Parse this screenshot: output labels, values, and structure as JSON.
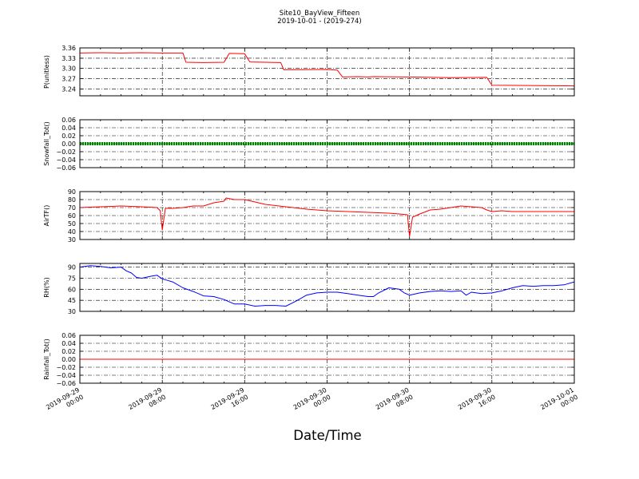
{
  "figure": {
    "title": "Site10_BayView_Fifteen",
    "subtitle": "2019-10-01 - (2019-274)",
    "xlabel": "Date/Time",
    "x_tick_labels": [
      [
        "2019-09-29",
        "00:00"
      ],
      [
        "2019-09-29",
        "08:00"
      ],
      [
        "2019-09-29",
        "16:00"
      ],
      [
        "2019-09-30",
        "00:00"
      ],
      [
        "2019-09-30",
        "08:00"
      ],
      [
        "2019-09-30",
        "16:00"
      ],
      [
        "2019-10-01",
        "00:00"
      ]
    ]
  },
  "chart_data": [
    {
      "type": "line",
      "ylabel": "P(unitless)",
      "ylim": [
        3.22,
        3.36
      ],
      "yticks": [
        3.36,
        3.33,
        3.3,
        3.27,
        3.24
      ],
      "ytick_labels": [
        "3.36",
        "3.33",
        "3.30",
        "3.27",
        "3.24"
      ],
      "xlim": [
        0,
        48
      ],
      "grid": true,
      "color": "#ff0000",
      "series": [
        {
          "x": [
            0,
            2,
            4,
            6,
            8,
            10,
            10.3,
            12,
            14,
            14.5,
            16,
            16.5,
            18,
            19.5,
            19.8,
            24,
            25,
            25.5,
            27,
            28,
            28.5,
            32,
            36,
            39.5,
            40,
            48
          ],
          "y": [
            3.345,
            3.346,
            3.345,
            3.346,
            3.345,
            3.345,
            3.318,
            3.317,
            3.318,
            3.344,
            3.343,
            3.319,
            3.318,
            3.317,
            3.296,
            3.297,
            3.295,
            3.275,
            3.276,
            3.275,
            3.276,
            3.275,
            3.273,
            3.274,
            3.251,
            3.249
          ]
        }
      ]
    },
    {
      "type": "line",
      "ylabel": "Snowfall_Tot()",
      "ylim": [
        -0.06,
        0.06
      ],
      "yticks": [
        0.06,
        0.04,
        0.02,
        0.0,
        -0.02,
        -0.04,
        -0.06
      ],
      "ytick_labels": [
        "0.06",
        "0.04",
        "0.02",
        "0.00",
        "−0.02",
        "−0.04",
        "−0.06"
      ],
      "xlim": [
        0,
        48
      ],
      "grid": true,
      "color": "#008000",
      "marker": "dot",
      "series": [
        {
          "x": [
            0,
            48
          ],
          "y": [
            0,
            0
          ]
        }
      ]
    },
    {
      "type": "line",
      "ylabel": "AirTF()",
      "ylim": [
        30,
        90
      ],
      "yticks": [
        90,
        80,
        70,
        60,
        50,
        40,
        30
      ],
      "ytick_labels": [
        "90",
        "80",
        "70",
        "60",
        "50",
        "40",
        "30"
      ],
      "xlim": [
        0,
        48
      ],
      "grid": true,
      "color": "#ff0000",
      "series": [
        {
          "x": [
            0,
            2,
            4,
            6,
            7.5,
            7.8,
            8,
            8.3,
            9,
            10,
            11,
            12,
            13,
            14,
            14.2,
            15,
            16,
            17,
            18,
            20,
            22,
            24,
            26,
            28,
            30,
            31,
            31.8,
            32,
            32.3,
            33,
            34,
            35,
            36,
            37,
            38,
            39,
            39.5,
            40,
            41,
            42,
            44,
            46,
            48
          ],
          "y": [
            70,
            71,
            72,
            71,
            70,
            66,
            42,
            69,
            69,
            70,
            72,
            72,
            76,
            78,
            82,
            80,
            80,
            77,
            74,
            71,
            68,
            66,
            65,
            64,
            63,
            62,
            61,
            34,
            58,
            62,
            67,
            68,
            70,
            72,
            71,
            70,
            67,
            65,
            66,
            65,
            65,
            65,
            65
          ]
        }
      ]
    },
    {
      "type": "line",
      "ylabel": "RH(%)",
      "ylim": [
        30,
        95
      ],
      "yticks": [
        90,
        75,
        60,
        45,
        30
      ],
      "ytick_labels": [
        "90",
        "75",
        "60",
        "45",
        "30"
      ],
      "xlim": [
        0,
        48
      ],
      "grid": true,
      "color": "#0000ff",
      "series": [
        {
          "x": [
            0,
            1,
            2,
            3,
            4,
            4.5,
            5,
            5.5,
            6,
            7,
            7.5,
            8,
            8.5,
            9,
            10,
            11,
            12,
            13,
            14,
            15,
            16,
            17,
            18,
            19,
            20,
            21,
            22,
            23,
            24,
            25,
            26,
            27,
            28,
            28.5,
            29,
            30,
            31,
            31.5,
            32,
            33,
            34,
            35,
            36,
            37,
            37.5,
            38,
            39,
            40,
            41,
            42,
            43,
            44,
            45,
            46,
            47,
            48
          ],
          "y": [
            90,
            92,
            91,
            89,
            90,
            85,
            82,
            76,
            75,
            78,
            79,
            74,
            72,
            70,
            62,
            57,
            51,
            50,
            46,
            40,
            40,
            37,
            38,
            38,
            37,
            44,
            52,
            55,
            56,
            56,
            54,
            52,
            50,
            50,
            55,
            62,
            60,
            55,
            52,
            55,
            57,
            58,
            57,
            58,
            52,
            56,
            54,
            55,
            58,
            62,
            65,
            64,
            65,
            65,
            66,
            70
          ]
        }
      ]
    },
    {
      "type": "line",
      "ylabel": "Rainfall_Tot()",
      "ylim": [
        -0.06,
        0.06
      ],
      "yticks": [
        0.06,
        0.04,
        0.02,
        0.0,
        -0.02,
        -0.04,
        -0.06
      ],
      "ytick_labels": [
        "0.06",
        "0.04",
        "0.02",
        "0.00",
        "−0.02",
        "−0.04",
        "−0.06"
      ],
      "xlim": [
        0,
        48
      ],
      "grid": true,
      "color": "#ff0000",
      "series": [
        {
          "x": [
            0,
            48
          ],
          "y": [
            0,
            0
          ]
        }
      ]
    }
  ]
}
